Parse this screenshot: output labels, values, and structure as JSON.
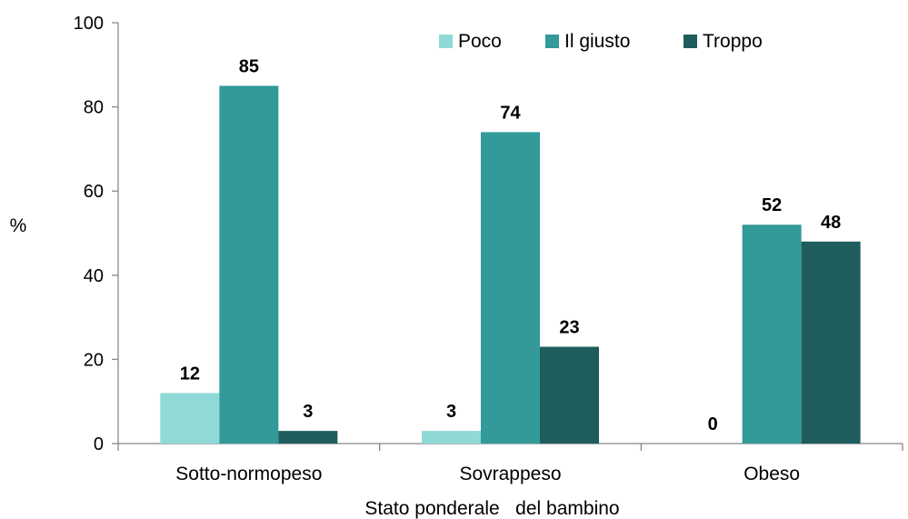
{
  "chart_data": {
    "type": "bar",
    "categories": [
      "Sotto-normopeso",
      "Sovrappeso",
      "Obeso"
    ],
    "series": [
      {
        "name": "Poco",
        "values": [
          12,
          3,
          0
        ],
        "color": "#8fd9d6"
      },
      {
        "name": "Il giusto",
        "values": [
          85,
          74,
          52
        ],
        "color": "#339999"
      },
      {
        "name": "Troppo",
        "values": [
          3,
          23,
          48
        ],
        "color": "#1f5c5c"
      }
    ],
    "data_labels": [
      [
        "12",
        "3",
        "0"
      ],
      [
        "85",
        "74",
        "52"
      ],
      [
        "3",
        "23",
        "48"
      ]
    ],
    "ylim": [
      0,
      100
    ],
    "yticks": [
      0,
      20,
      40,
      60,
      80,
      100
    ],
    "ylabel": "%",
    "xlabel": "Stato ponderale   del bambino",
    "legend_position": "top-right",
    "grid": false
  }
}
